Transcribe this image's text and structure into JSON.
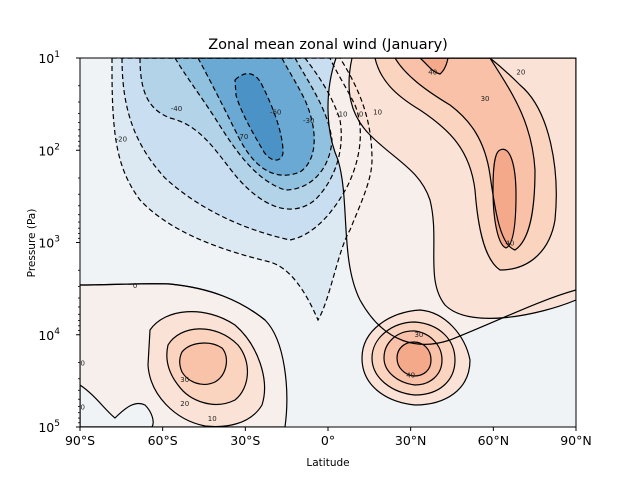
{
  "chart_data": {
    "type": "contour",
    "title": "Zonal mean zonal wind (January)",
    "xlabel": "Latitude",
    "ylabel": "Pressure (Pa)",
    "xlim": [
      -90,
      90
    ],
    "ylim_pa": [
      100000,
      10
    ],
    "yscale": "log",
    "x_ticks": [
      {
        "value": -90,
        "label": "90°S"
      },
      {
        "value": -60,
        "label": "60°S"
      },
      {
        "value": -30,
        "label": "30°S"
      },
      {
        "value": 0,
        "label": "0°"
      },
      {
        "value": 30,
        "label": "30°N"
      },
      {
        "value": 60,
        "label": "60°N"
      },
      {
        "value": 90,
        "label": "90°N"
      }
    ],
    "y_ticks": [
      {
        "value": 10,
        "base": "10",
        "exp": "1"
      },
      {
        "value": 100,
        "base": "10",
        "exp": "2"
      },
      {
        "value": 1000,
        "base": "10",
        "exp": "3"
      },
      {
        "value": 10000,
        "base": "10",
        "exp": "4"
      },
      {
        "value": 100000,
        "base": "10",
        "exp": "5"
      }
    ],
    "colormap": "RdBu_r",
    "contour_interval": 10,
    "negative_contours": "dashed",
    "grid": false,
    "features": [
      {
        "name": "southern-stratospheric-easterly-jet",
        "lat": -30,
        "p": 40,
        "u": -75
      },
      {
        "name": "northern-stratospheric-westerly-jet",
        "lat": 60,
        "p": 300,
        "u": 45
      },
      {
        "name": "northern-upper-westerly",
        "lat": 35,
        "p": 10,
        "u": 42
      },
      {
        "name": "southern-subtropical-jet",
        "lat": -45,
        "p": 20000,
        "u": 35
      },
      {
        "name": "northern-subtropical-jet",
        "lat": 32,
        "p": 20000,
        "u": 45
      }
    ],
    "contour_labels": [
      {
        "text": "-20",
        "lat": -75,
        "p": 75
      },
      {
        "text": "-40",
        "lat": -55,
        "p": 35
      },
      {
        "text": "-70",
        "lat": -31,
        "p": 70
      },
      {
        "text": "-60",
        "lat": -19,
        "p": 38
      },
      {
        "text": "-30",
        "lat": -7,
        "p": 47
      },
      {
        "text": "-10",
        "lat": 5,
        "p": 40
      },
      {
        "text": "0",
        "lat": 12,
        "p": 40
      },
      {
        "text": "10",
        "lat": 18,
        "p": 38
      },
      {
        "text": "40",
        "lat": 38,
        "p": 14
      },
      {
        "text": "30",
        "lat": 57,
        "p": 27
      },
      {
        "text": "20",
        "lat": 70,
        "p": 14
      },
      {
        "text": "40",
        "lat": 66,
        "p": 1000
      },
      {
        "text": "0",
        "lat": -70,
        "p": 2900
      },
      {
        "text": "30",
        "lat": 33,
        "p": 9800
      },
      {
        "text": "40",
        "lat": 30,
        "p": 27000
      },
      {
        "text": "30",
        "lat": -52,
        "p": 30000
      },
      {
        "text": "20",
        "lat": -52,
        "p": 55000
      },
      {
        "text": "10",
        "lat": -42,
        "p": 80000
      },
      {
        "text": "0",
        "lat": -89,
        "p": 20000
      },
      {
        "text": "0",
        "lat": -89,
        "p": 60000
      }
    ]
  }
}
